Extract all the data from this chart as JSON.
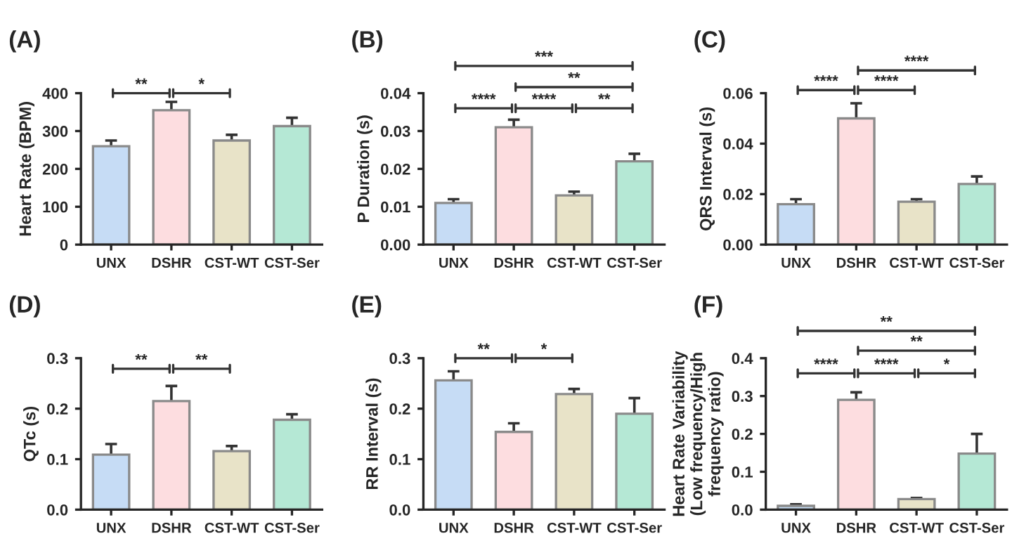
{
  "chart_data": [
    {
      "type": "bar",
      "title": "(A)",
      "ylabel": "Heart Rate (BPM)",
      "categories": [
        "UNX",
        "DSHR",
        "CST-WT",
        "CST-Ser"
      ],
      "values": [
        260,
        355,
        275,
        313
      ],
      "errors": [
        15,
        22,
        15,
        22
      ],
      "colors": [
        "#c6dcf5",
        "#fddde0",
        "#e8e3c8",
        "#b5e8d5"
      ],
      "ylim": [
        0,
        400
      ],
      "yticks": [
        0,
        100,
        200,
        300,
        400
      ],
      "annotations": [
        "**",
        "*"
      ]
    },
    {
      "type": "bar",
      "title": "(B)",
      "ylabel": "P Duration (s)",
      "categories": [
        "UNX",
        "DSHR",
        "CST-WT",
        "CST-Ser"
      ],
      "values": [
        0.011,
        0.031,
        0.013,
        0.022
      ],
      "errors": [
        0.001,
        0.002,
        0.001,
        0.002
      ],
      "colors": [
        "#c6dcf5",
        "#fddde0",
        "#e8e3c8",
        "#b5e8d5"
      ],
      "ylim": [
        0,
        0.04
      ],
      "yticks": [
        {
          "value": 0,
          "label": "0.00"
        },
        {
          "value": 0.01,
          "label": "0.01"
        },
        {
          "value": 0.02,
          "label": "0.02"
        },
        {
          "value": 0.03,
          "label": "0.03"
        },
        {
          "value": 0.04,
          "label": "0.04"
        }
      ],
      "annotations": [
        "****",
        "****",
        "**",
        "**",
        "***"
      ]
    },
    {
      "type": "bar",
      "title": "(C)",
      "ylabel": "QRS Interval (s)",
      "categories": [
        "UNX",
        "DSHR",
        "CST-WT",
        "CST-Ser"
      ],
      "values": [
        0.016,
        0.05,
        0.017,
        0.024
      ],
      "errors": [
        0.002,
        0.006,
        0.001,
        0.003
      ],
      "colors": [
        "#c6dcf5",
        "#fddde0",
        "#e8e3c8",
        "#b5e8d5"
      ],
      "ylim": [
        0,
        0.06
      ],
      "yticks": [
        {
          "value": 0,
          "label": "0.00"
        },
        {
          "value": 0.02,
          "label": "0.02"
        },
        {
          "value": 0.04,
          "label": "0.04"
        },
        {
          "value": 0.06,
          "label": "0.06"
        }
      ],
      "annotations": [
        "****",
        "****",
        "****"
      ]
    },
    {
      "type": "bar",
      "title": "(D)",
      "ylabel": "QTc (s)",
      "categories": [
        "UNX",
        "DSHR",
        "CST-WT",
        "CST-Ser"
      ],
      "values": [
        0.109,
        0.215,
        0.116,
        0.178
      ],
      "errors": [
        0.021,
        0.03,
        0.01,
        0.011
      ],
      "colors": [
        "#c6dcf5",
        "#fddde0",
        "#e8e3c8",
        "#b5e8d5"
      ],
      "ylim": [
        0,
        0.3
      ],
      "yticks": [
        {
          "value": 0,
          "label": "0.0"
        },
        {
          "value": 0.1,
          "label": "0.1"
        },
        {
          "value": 0.2,
          "label": "0.2"
        },
        {
          "value": 0.3,
          "label": "0.3"
        }
      ],
      "annotations": [
        "**",
        "**"
      ]
    },
    {
      "type": "bar",
      "title": "(E)",
      "ylabel": "RR Interval (s)",
      "categories": [
        "UNX",
        "DSHR",
        "CST-WT",
        "CST-Ser"
      ],
      "values": [
        0.256,
        0.154,
        0.229,
        0.19
      ],
      "errors": [
        0.018,
        0.017,
        0.01,
        0.031
      ],
      "colors": [
        "#c6dcf5",
        "#fddde0",
        "#e8e3c8",
        "#b5e8d5"
      ],
      "ylim": [
        0,
        0.3
      ],
      "yticks": [
        {
          "value": 0,
          "label": "0.0"
        },
        {
          "value": 0.1,
          "label": "0.1"
        },
        {
          "value": 0.2,
          "label": "0.2"
        },
        {
          "value": 0.3,
          "label": "0.3"
        }
      ],
      "annotations": [
        "**",
        "*"
      ]
    },
    {
      "type": "bar",
      "title": "(F)",
      "ylabel": "Heart Rate Variability\n(Low frequency/High\nfrequency ratio)",
      "categories": [
        "UNX",
        "DSHR",
        "CST-WT",
        "CST-Ser"
      ],
      "values": [
        0.01,
        0.29,
        0.028,
        0.148
      ],
      "errors": [
        0.004,
        0.02,
        0.003,
        0.052
      ],
      "colors": [
        "#c6dcf5",
        "#fddde0",
        "#e8e3c8",
        "#b5e8d5"
      ],
      "ylim": [
        0,
        0.4
      ],
      "yticks": [
        {
          "value": 0,
          "label": "0.0"
        },
        {
          "value": 0.1,
          "label": "0.1"
        },
        {
          "value": 0.2,
          "label": "0.2"
        },
        {
          "value": 0.3,
          "label": "0.3"
        },
        {
          "value": 0.4,
          "label": "0.4"
        }
      ],
      "annotations": [
        "****",
        "****",
        "*",
        "**",
        "**"
      ]
    }
  ]
}
